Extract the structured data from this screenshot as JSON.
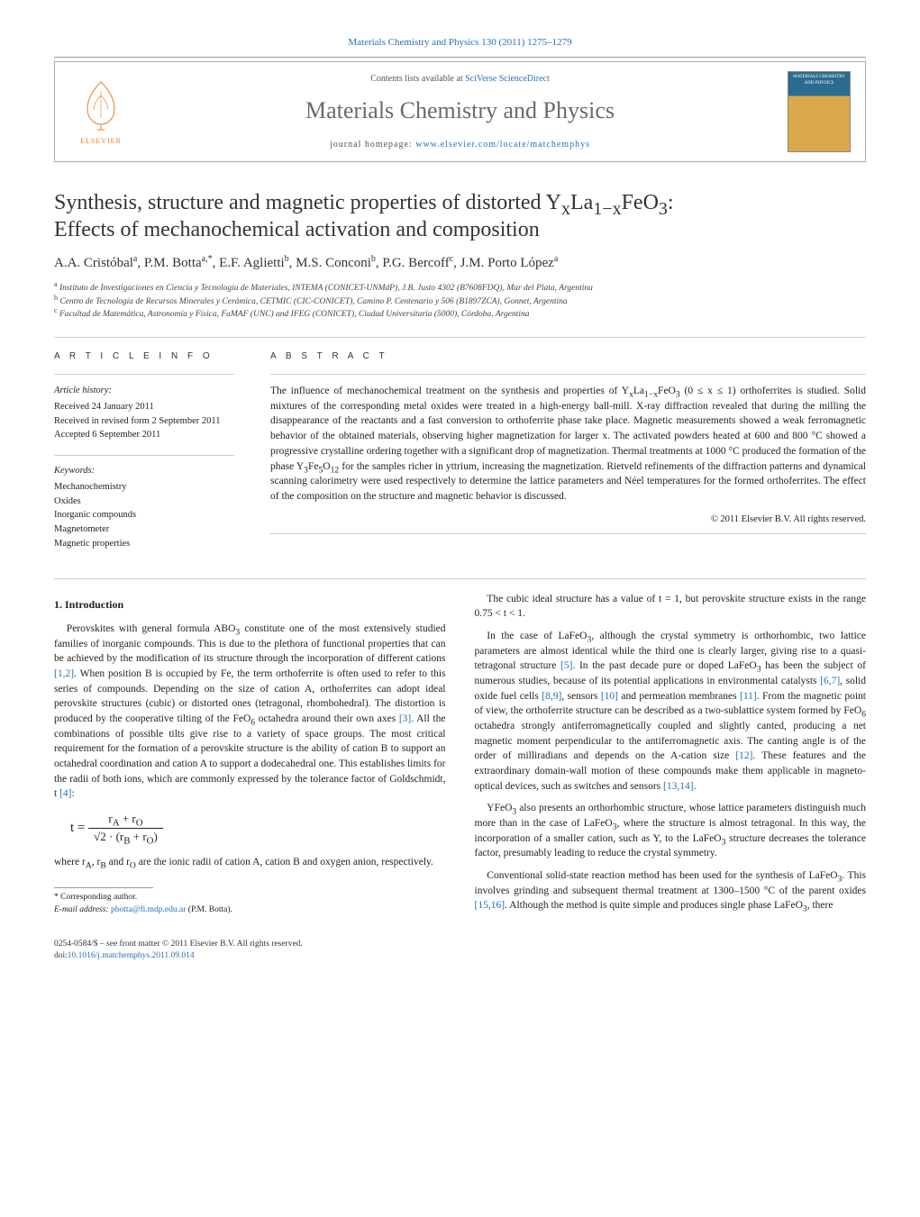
{
  "top": {
    "citation_link_text": "Materials Chemistry and Physics 130 (2011) 1275–1279",
    "citation_url_label": "citation-link"
  },
  "header": {
    "contents_prefix": "Contents lists available at ",
    "contents_link": "SciVerse ScienceDirect",
    "journal_name": "Materials Chemistry and Physics",
    "homepage_prefix": "journal homepage: ",
    "homepage_link": "www.elsevier.com/locate/matchemphys",
    "elsevier_label": "ELSEVIER",
    "cover_text": "MATERIALS CHEMISTRY AND PHYSICS"
  },
  "article": {
    "title_line1": "Synthesis, structure and magnetic properties of distorted YₓLa₁₋ₓFeO₃:",
    "title_line2": "Effects of mechanochemical activation and composition",
    "authors_html": "A.A. Cristóbal<sup>a</sup>, P.M. Botta<sup>a,*</sup>, E.F. Aglietti<sup>b</sup>, M.S. Conconi<sup>b</sup>, P.G. Bercoff<sup>c</sup>, J.M. Porto López<sup>a</sup>",
    "affiliations": [
      "ᵃ Instituto de Investigaciones en Ciencia y Tecnología de Materiales, INTEMA (CONICET-UNMdP), J.B. Justo 4302 (B7608FDQ), Mar del Plata, Argentina",
      "ᵇ Centro de Tecnología de Recursos Minerales y Cerámica, CETMIC (CIC-CONICET), Camino P. Centenario y 506 (B1897ZCA), Gonnet, Argentina",
      "ᶜ Facultad de Matemática, Astronomía y Física, FaMAF (UNC) and IFEG (CONICET), Ciudad Universitaria (5000), Córdoba, Argentina"
    ]
  },
  "info": {
    "heading": "a r t i c l e   i n f o",
    "history_label": "Article history:",
    "received": "Received 24 January 2011",
    "revised": "Received in revised form 2 September 2011",
    "accepted": "Accepted 6 September 2011",
    "keywords_label": "Keywords:",
    "keywords": [
      "Mechanochemistry",
      "Oxides",
      "Inorganic compounds",
      "Magnetometer",
      "Magnetic properties"
    ]
  },
  "abstract": {
    "heading": "a b s t r a c t",
    "text": "The influence of mechanochemical treatment on the synthesis and properties of YₓLa₁₋ₓFeO₃ (0 ≤ x ≤ 1) orthoferrites is studied. Solid mixtures of the corresponding metal oxides were treated in a high-energy ball-mill. X-ray diffraction revealed that during the milling the disappearance of the reactants and a fast conversion to orthoferrite phase take place. Magnetic measurements showed a weak ferromagnetic behavior of the obtained materials, observing higher magnetization for larger x. The activated powders heated at 600 and 800 °C showed a progressive crystalline ordering together with a significant drop of magnetization. Thermal treatments at 1000 °C produced the formation of the phase Y₃Fe₅O₁₂ for the samples richer in yttrium, increasing the magnetization. Rietveld refinements of the diffraction patterns and dynamical scanning calorimetry were used respectively to determine the lattice parameters and Néel temperatures for the formed orthoferrites. The effect of the composition on the structure and magnetic behavior is discussed.",
    "copyright": "© 2011 Elsevier B.V. All rights reserved."
  },
  "body": {
    "intro_heading": "1.  Introduction",
    "p1": "Perovskites with general formula ABO₃ constitute one of the most extensively studied families of inorganic compounds. This is due to the plethora of functional properties that can be achieved by the modification of its structure through the incorporation of different cations [1,2]. When position B is occupied by Fe, the term orthoferrite is often used to refer to this series of compounds. Depending on the size of cation A, orthoferrites can adopt ideal perovskite structures (cubic) or distorted ones (tetragonal, rhombohedral). The distortion is produced by the cooperative tilting of the FeO₆ octahedra around their own axes [3]. All the combinations of possible tilts give rise to a variety of space groups. The most critical requirement for the formation of a perovskite structure is the ability of cation B to support an octahedral coordination and cation A to support a dodecahedral one. This establishes limits for the radii of both ions, which are commonly expressed by the tolerance factor of Goldschmidt, t [4]:",
    "eq_label_left": "t =",
    "eq_num": "rA + rO",
    "eq_den": "√2 · (rB + rO)",
    "p1b": "where rA, rB and rO are the ionic radii of cation A, cation B and oxygen anion, respectively.",
    "p2": "The cubic ideal structure has a value of t = 1, but perovskite structure exists in the range 0.75 < t < 1.",
    "p3": "In the case of LaFeO₃, although the crystal symmetry is orthorhombic, two lattice parameters are almost identical while the third one is clearly larger, giving rise to a quasi-tetragonal structure [5]. In the past decade pure or doped LaFeO₃ has been the subject of numerous studies, because of its potential applications in environmental catalysts [6,7], solid oxide fuel cells [8,9], sensors [10] and permeation membranes [11]. From the magnetic point of view, the orthoferrite structure can be described as a two-sublattice system formed by FeO₆ octahedra strongly antiferromagnetically coupled and slightly canted, producing a net magnetic moment perpendicular to the antiferromagnetic axis. The canting angle is of the order of milliradians and depends on the A-cation size [12]. These features and the extraordinary domain-wall motion of these compounds make them applicable in magneto-optical devices, such as switches and sensors [13,14].",
    "p4": "YFeO₃ also presents an orthorhombic structure, whose lattice parameters distinguish much more than in the case of LaFeO₃, where the structure is almost tetragonal. In this way, the incorporation of a smaller cation, such as Y, to the LaFeO₃ structure decreases the tolerance factor, presumably leading to reduce the crystal symmetry.",
    "p5": "Conventional solid-state reaction method has been used for the synthesis of LaFeO₃. This involves grinding and subsequent thermal treatment at 1300–1500 °C of the parent oxides [15,16]. Although the method is quite simple and produces single phase LaFeO₃, there"
  },
  "footnote": {
    "star": "* Corresponding author.",
    "email_label": "E-mail address: ",
    "email": "pbotta@fi.mdp.edu.ar",
    "email_suffix": " (P.M. Botta)."
  },
  "footer": {
    "left1": "0254-0584/$ – see front matter © 2011 Elsevier B.V. All rights reserved.",
    "doi_prefix": "doi:",
    "doi": "10.1016/j.matchemphys.2011.09.014"
  },
  "colors": {
    "link": "#2a6fb5",
    "orange": "#ea7e2c",
    "gray_text": "#6a6a6a",
    "border": "#aaaaaa",
    "rule": "#cccccc"
  }
}
